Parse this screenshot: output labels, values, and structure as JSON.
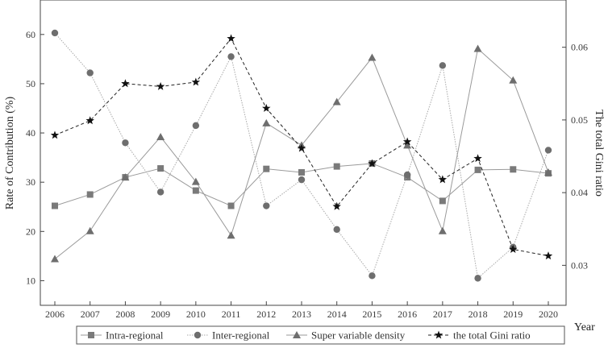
{
  "chart_data": {
    "type": "line",
    "x": [
      2006,
      2007,
      2008,
      2009,
      2010,
      2011,
      2012,
      2013,
      2014,
      2015,
      2016,
      2017,
      2018,
      2019,
      2020
    ],
    "xlabel": "Year",
    "ylabel": "Rate of Contribution (%)",
    "y2label": "The total Gini ratio",
    "ylim": [
      5,
      67
    ],
    "y2lim": [
      0.0245,
      0.0665
    ],
    "yticks": [
      10,
      20,
      30,
      40,
      50,
      60
    ],
    "y2ticks": [
      0.03,
      0.04,
      0.05,
      0.06
    ],
    "y2tick_labels": [
      "0.03",
      "0.04",
      "0.05",
      "0.06"
    ],
    "legend_position": "bottom",
    "grid": false,
    "series": [
      {
        "name": "Intra-regional",
        "axis": "left",
        "marker": "square",
        "values": [
          25.2,
          27.5,
          31.0,
          32.8,
          28.3,
          25.2,
          32.7,
          32.0,
          33.2,
          33.8,
          31.0,
          26.2,
          32.5,
          32.6,
          31.8
        ]
      },
      {
        "name": "Inter-regional",
        "axis": "left",
        "marker": "circle",
        "values": [
          60.3,
          52.2,
          38.0,
          28.0,
          41.5,
          55.5,
          25.2,
          30.5,
          20.4,
          11.0,
          31.5,
          53.7,
          10.5,
          16.8,
          36.5
        ]
      },
      {
        "name": "Super variable density",
        "axis": "left",
        "marker": "triangle",
        "values": [
          14.4,
          20.1,
          31.0,
          39.2,
          30.1,
          19.2,
          42.0,
          37.5,
          46.3,
          55.3,
          37.5,
          20.1,
          57.1,
          50.7,
          32.0
        ]
      },
      {
        "name": "the total Gini ratio",
        "axis": "right",
        "marker": "star",
        "values": [
          0.0479,
          0.0499,
          0.055,
          0.0546,
          0.0552,
          0.0612,
          0.0516,
          0.0461,
          0.0381,
          0.044,
          0.047,
          0.0418,
          0.0447,
          0.0322,
          0.0313
        ]
      }
    ]
  }
}
